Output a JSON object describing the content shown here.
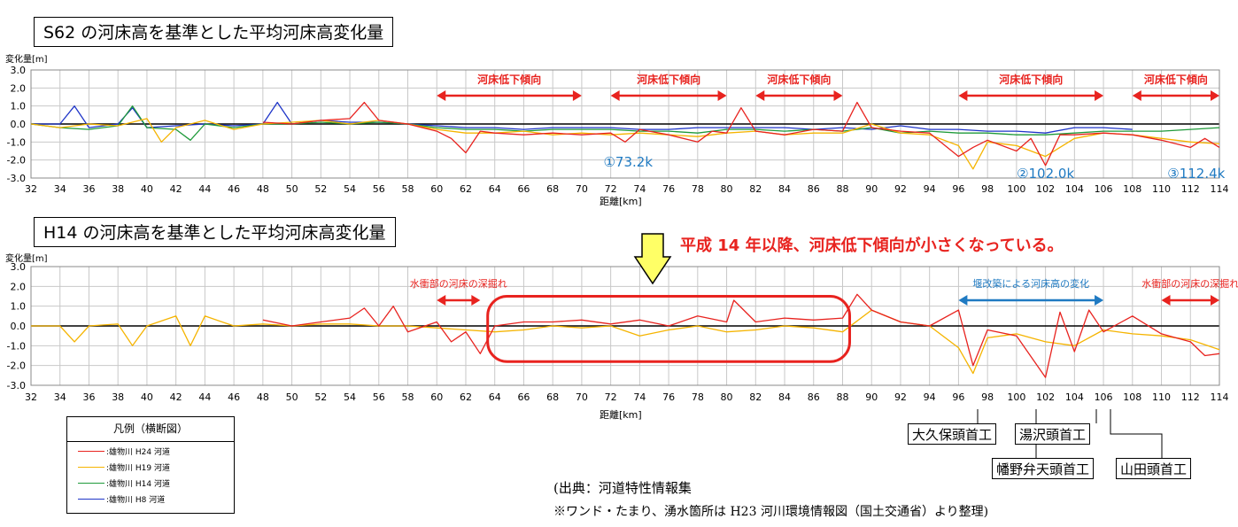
{
  "chart_data": [
    {
      "type": "line",
      "title": "S62 の河床高を基準とした平均河床高変化量",
      "ylabel": "変化量[m]",
      "xlabel": "距離[km]",
      "xlim": [
        32,
        114
      ],
      "ylim": [
        -3.0,
        3.0
      ],
      "xticks": [
        "32",
        "34",
        "36",
        "38",
        "40",
        "42",
        "44",
        "46",
        "48",
        "50",
        "52",
        "54",
        "56",
        "58",
        "60",
        "62",
        "64",
        "66",
        "68",
        "70",
        "72",
        "74",
        "76",
        "78",
        "80",
        "82",
        "84",
        "86",
        "88",
        "90",
        "92",
        "94",
        "96",
        "98",
        "100",
        "102",
        "104",
        "106",
        "108",
        "110",
        "112",
        "114"
      ],
      "yticks": [
        "3.0",
        "2.0",
        "1.0",
        "0.0",
        "-1.0",
        "-2.0",
        "-3.0"
      ],
      "grid": true,
      "series": [
        {
          "name": "雄物川 H24 河道",
          "color": "#e8231f",
          "x": [
            48,
            50,
            52,
            54,
            55,
            56,
            58,
            60,
            61,
            62,
            63,
            64,
            66,
            68,
            70,
            72,
            73,
            74,
            76,
            78,
            79,
            80,
            81,
            82,
            84,
            86,
            88,
            89,
            90,
            92,
            94,
            96,
            97,
            98,
            100,
            101,
            102,
            103,
            104,
            106,
            108,
            110,
            112,
            113,
            114
          ],
          "y": [
            0.1,
            0.0,
            0.2,
            0.3,
            1.2,
            0.2,
            0.0,
            -0.4,
            -0.8,
            -1.6,
            -0.4,
            -0.5,
            -0.6,
            -0.5,
            -0.6,
            -0.5,
            -1.0,
            -0.3,
            -0.6,
            -1.0,
            -0.4,
            -0.5,
            0.9,
            -0.4,
            -0.6,
            -0.3,
            -0.4,
            1.2,
            -0.2,
            -0.4,
            -0.5,
            -1.8,
            -1.3,
            -0.9,
            -1.5,
            -0.8,
            -2.3,
            -0.6,
            -0.6,
            -0.5,
            -0.6,
            -0.9,
            -1.3,
            -0.8,
            -1.3
          ]
        },
        {
          "name": "雄物川 H19 河道",
          "color": "#f5b400",
          "x": [
            32,
            34,
            36,
            38,
            40,
            41,
            42,
            44,
            46,
            48,
            50,
            52,
            54,
            56,
            58,
            60,
            62,
            64,
            66,
            68,
            70,
            72,
            74,
            76,
            78,
            80,
            82,
            84,
            86,
            88,
            90,
            92,
            94,
            96,
            97,
            98,
            100,
            102,
            104,
            106,
            108,
            110,
            112,
            114
          ],
          "y": [
            0.0,
            -0.2,
            0.0,
            -0.1,
            0.3,
            -1.0,
            -0.2,
            0.2,
            -0.3,
            0.0,
            0.1,
            0.2,
            0.0,
            0.2,
            0.0,
            -0.3,
            -0.5,
            -0.5,
            -0.4,
            -0.6,
            -0.5,
            -0.6,
            -0.5,
            -0.6,
            -0.7,
            -0.5,
            -0.4,
            -0.6,
            -0.5,
            -0.5,
            0.0,
            -0.5,
            -0.6,
            -1.2,
            -2.5,
            -1.0,
            -1.2,
            -1.8,
            -0.8,
            -0.5,
            -0.6,
            -0.8,
            -1.0,
            -1.1
          ]
        },
        {
          "name": "雄物川 H14 河道",
          "color": "#1f9a3a",
          "x": [
            32,
            34,
            36,
            38,
            39,
            40,
            42,
            43,
            44,
            46,
            48,
            50,
            52,
            54,
            56,
            58,
            60,
            62,
            64,
            66,
            68,
            70,
            72,
            74,
            76,
            78,
            80,
            82,
            84,
            86,
            88,
            90,
            92,
            94,
            96,
            98,
            100,
            102,
            104,
            106,
            108,
            110,
            112,
            114
          ],
          "y": [
            0.0,
            -0.2,
            -0.3,
            -0.1,
            1.0,
            -0.2,
            -0.3,
            -0.9,
            0.0,
            -0.2,
            0.0,
            0.0,
            0.1,
            0.0,
            0.1,
            0.0,
            -0.2,
            -0.3,
            -0.3,
            -0.4,
            -0.3,
            -0.3,
            -0.3,
            -0.4,
            -0.4,
            -0.5,
            -0.3,
            -0.3,
            -0.4,
            -0.3,
            -0.4,
            -0.2,
            -0.5,
            -0.4,
            -0.5,
            -0.5,
            -0.6,
            -0.6,
            -0.5,
            -0.4,
            -0.4,
            -0.4,
            -0.3,
            -0.2
          ]
        },
        {
          "name": "雄物川 H8 河道",
          "color": "#1f35c8",
          "x": [
            32,
            34,
            35,
            36,
            38,
            39,
            40,
            42,
            44,
            46,
            48,
            49,
            50,
            52,
            54,
            56,
            58,
            60,
            62,
            64,
            66,
            68,
            70,
            72,
            74,
            76,
            78,
            80,
            82,
            84,
            86,
            88,
            90,
            92,
            94,
            96,
            98,
            100,
            102,
            104,
            106,
            108
          ],
          "y": [
            0.0,
            0.0,
            1.0,
            -0.2,
            0.0,
            0.9,
            -0.2,
            -0.1,
            0.0,
            -0.1,
            0.0,
            1.2,
            0.0,
            0.2,
            0.1,
            0.1,
            0.0,
            -0.1,
            -0.2,
            -0.2,
            -0.3,
            -0.2,
            -0.2,
            -0.2,
            -0.3,
            -0.3,
            -0.2,
            -0.2,
            -0.2,
            -0.2,
            -0.3,
            -0.2,
            -0.3,
            -0.1,
            -0.3,
            -0.3,
            -0.4,
            -0.4,
            -0.5,
            -0.2,
            -0.2,
            -0.3
          ]
        }
      ],
      "annotations": [
        {
          "text": "河床低下傾向",
          "x_from": 60,
          "x_to": 70
        },
        {
          "text": "河床低下傾向",
          "x_from": 72,
          "x_to": 80
        },
        {
          "text": "河床低下傾向",
          "x_from": 82,
          "x_to": 88
        },
        {
          "text": "河床低下傾向",
          "x_from": 96,
          "x_to": 106
        },
        {
          "text": "河床低下傾向",
          "x_from": 108,
          "x_to": 114
        }
      ],
      "points": [
        {
          "text": "①73.2k",
          "x": 73.2
        },
        {
          "text": "②102.0k",
          "x": 102.0
        },
        {
          "text": "③112.4k",
          "x": 112.4
        }
      ]
    },
    {
      "type": "line",
      "title": "H14 の河床高を基準とした平均河床高変化量",
      "ylabel": "変化量[m]",
      "xlabel": "距離[km]",
      "xlim": [
        32,
        114
      ],
      "ylim": [
        -3.0,
        3.0
      ],
      "xticks": [
        "32",
        "34",
        "36",
        "38",
        "40",
        "42",
        "44",
        "46",
        "48",
        "50",
        "52",
        "54",
        "56",
        "58",
        "60",
        "62",
        "64",
        "66",
        "68",
        "70",
        "72",
        "74",
        "76",
        "78",
        "80",
        "82",
        "84",
        "86",
        "88",
        "90",
        "92",
        "94",
        "96",
        "98",
        "100",
        "102",
        "104",
        "106",
        "108",
        "110",
        "112",
        "114"
      ],
      "yticks": [
        "3.0",
        "2.0",
        "1.0",
        "0.0",
        "-1.0",
        "-2.0",
        "-3.0"
      ],
      "grid": true,
      "series": [
        {
          "name": "雄物川 H24 河道",
          "color": "#e8231f",
          "x": [
            48,
            50,
            52,
            54,
            55,
            56,
            57,
            58,
            60,
            61,
            62,
            63,
            64,
            66,
            68,
            70,
            72,
            74,
            76,
            78,
            80,
            80.5,
            82,
            84,
            86,
            88,
            89,
            90,
            92,
            94,
            96,
            97,
            98,
            100,
            102,
            103,
            104,
            105,
            106,
            108,
            110,
            112,
            113,
            114
          ],
          "y": [
            0.3,
            0.0,
            0.2,
            0.4,
            0.9,
            0.0,
            1.0,
            -0.3,
            0.2,
            -0.8,
            -0.3,
            -1.4,
            0.0,
            0.2,
            0.2,
            0.3,
            0.1,
            0.3,
            0.0,
            0.5,
            0.2,
            1.3,
            0.2,
            0.4,
            0.3,
            0.4,
            1.6,
            0.8,
            0.2,
            0.0,
            0.8,
            -2.0,
            -0.2,
            -0.5,
            -2.6,
            0.7,
            -1.3,
            0.8,
            -0.3,
            0.5,
            -0.4,
            -0.8,
            -1.5,
            -1.4
          ]
        },
        {
          "name": "雄物川 H19 河道",
          "color": "#f5b400",
          "x": [
            32,
            34,
            35,
            36,
            38,
            39,
            40,
            42,
            43,
            44,
            46,
            48,
            50,
            52,
            54,
            56,
            58,
            60,
            62,
            64,
            66,
            68,
            70,
            72,
            74,
            76,
            78,
            80,
            82,
            84,
            86,
            88,
            90,
            92,
            94,
            96,
            97,
            98,
            100,
            102,
            104,
            106,
            108,
            110,
            112,
            114
          ],
          "y": [
            0.0,
            0.0,
            -0.8,
            0.0,
            0.1,
            -1.0,
            0.0,
            0.5,
            -1.0,
            0.5,
            0.0,
            0.1,
            0.0,
            0.1,
            0.1,
            0.0,
            0.0,
            -0.1,
            -0.2,
            -0.3,
            -0.2,
            0.0,
            -0.1,
            0.0,
            -0.5,
            -0.2,
            0.0,
            -0.3,
            -0.2,
            0.0,
            -0.1,
            -0.3,
            0.8,
            0.2,
            0.0,
            -1.1,
            -2.4,
            -0.6,
            -0.4,
            -0.8,
            -1.0,
            -0.2,
            -0.4,
            -0.5,
            -0.7,
            -1.2
          ]
        }
      ],
      "annotations": [
        {
          "text": "水衝部の河床の深掘れ",
          "x_from": 60,
          "x_to": 63
        },
        {
          "text": "堰改築による河床高の変化",
          "x_from": 96,
          "x_to": 106
        },
        {
          "text": "水衝部の河床の深掘れ",
          "x_from": 110,
          "x_to": 114
        }
      ],
      "highlight": {
        "x_from": 64,
        "x_to": 88
      }
    }
  ],
  "callout": "平成 14 年以降、河床低下傾向が小さくなっている。",
  "legend": {
    "title": "凡例（横断図）",
    "items": [
      {
        "label": ":雄物川 H24 河道",
        "color": "#e8231f"
      },
      {
        "label": ":雄物川 H19 河道",
        "color": "#f5b400"
      },
      {
        "label": ":雄物川 H14 河道",
        "color": "#1f9a3a"
      },
      {
        "label": ":雄物川 H8 河道",
        "color": "#1f35c8"
      }
    ]
  },
  "weirs": [
    {
      "name": "大久保頭首工"
    },
    {
      "name": "湯沢頭首工"
    },
    {
      "name": "幡野弁天頭首工"
    },
    {
      "name": "山田頭首工"
    }
  ],
  "source": {
    "line1": "(出典：河道特性情報集",
    "line2": "※ワンド・たまり、湧水箇所は H23 河川環境情報図（国土交通省）より整理)"
  },
  "colors": {
    "red": "#e8231f",
    "blue": "#1f7ac2",
    "arrow_fill": "#ffff66"
  }
}
